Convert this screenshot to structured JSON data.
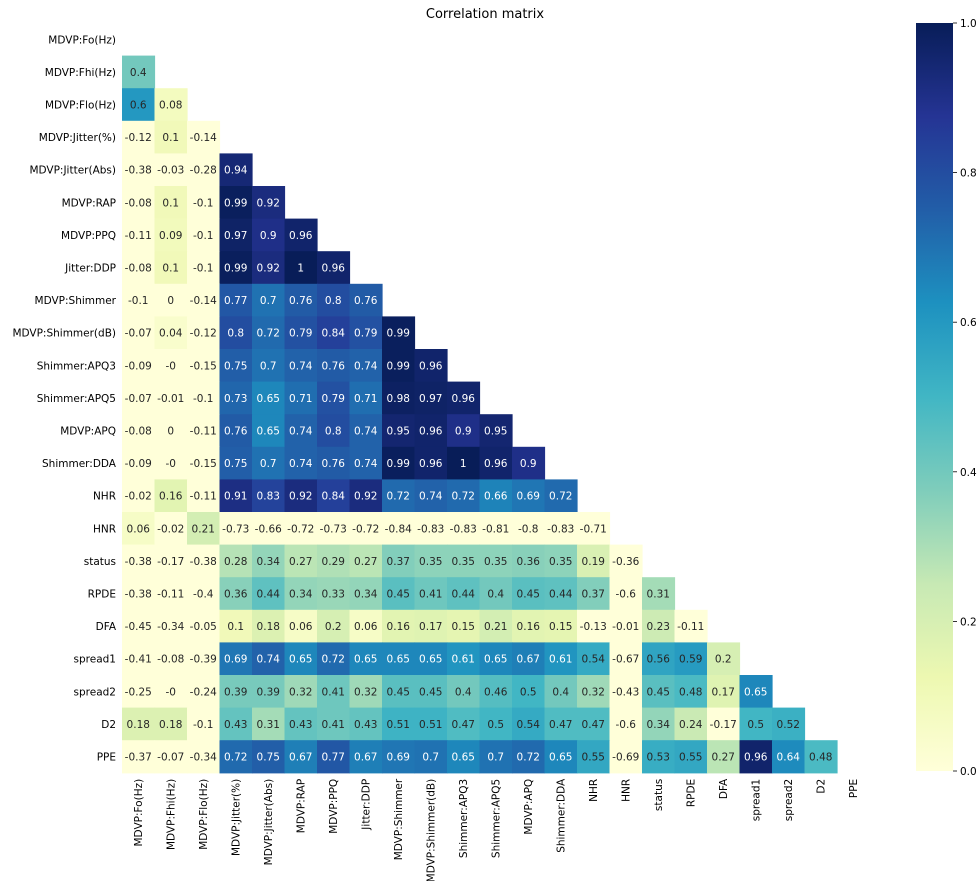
{
  "chart_data": {
    "type": "heatmap",
    "title": "Correlation matrix",
    "variables": [
      "MDVP:Fo(Hz)",
      "MDVP:Fhi(Hz)",
      "MDVP:Flo(Hz)",
      "MDVP:Jitter(%)",
      "MDVP:Jitter(Abs)",
      "MDVP:RAP",
      "MDVP:PPQ",
      "Jitter:DDP",
      "MDVP:Shimmer",
      "MDVP:Shimmer(dB)",
      "Shimmer:APQ3",
      "Shimmer:APQ5",
      "MDVP:APQ",
      "Shimmer:DDA",
      "NHR",
      "HNR",
      "status",
      "RPDE",
      "DFA",
      "spread1",
      "spread2",
      "D2",
      "PPE"
    ],
    "mask": "upper-triangle-including-diagonal",
    "values": [
      [],
      [
        0.4
      ],
      [
        0.6,
        0.08
      ],
      [
        -0.12,
        0.1,
        -0.14
      ],
      [
        -0.38,
        -0.03,
        -0.28,
        0.94
      ],
      [
        -0.08,
        0.1,
        -0.1,
        0.99,
        0.92
      ],
      [
        -0.11,
        0.09,
        -0.1,
        0.97,
        0.9,
        0.96
      ],
      [
        -0.08,
        0.1,
        -0.1,
        0.99,
        0.92,
        1,
        0.96
      ],
      [
        -0.1,
        0,
        -0.14,
        0.77,
        0.7,
        0.76,
        0.8,
        0.76
      ],
      [
        -0.07,
        0.04,
        -0.12,
        0.8,
        0.72,
        0.79,
        0.84,
        0.79,
        0.99
      ],
      [
        -0.09,
        -0.0,
        -0.15,
        0.75,
        0.7,
        0.74,
        0.76,
        0.74,
        0.99,
        0.96
      ],
      [
        -0.07,
        -0.01,
        -0.1,
        0.73,
        0.65,
        0.71,
        0.79,
        0.71,
        0.98,
        0.97,
        0.96
      ],
      [
        -0.08,
        0,
        -0.11,
        0.76,
        0.65,
        0.74,
        0.8,
        0.74,
        0.95,
        0.96,
        0.9,
        0.95
      ],
      [
        -0.09,
        -0.0,
        -0.15,
        0.75,
        0.7,
        0.74,
        0.76,
        0.74,
        0.99,
        0.96,
        1,
        0.96,
        0.9
      ],
      [
        -0.02,
        0.16,
        -0.11,
        0.91,
        0.83,
        0.92,
        0.84,
        0.92,
        0.72,
        0.74,
        0.72,
        0.66,
        0.69,
        0.72
      ],
      [
        0.06,
        -0.02,
        0.21,
        -0.73,
        -0.66,
        -0.72,
        -0.73,
        -0.72,
        -0.84,
        -0.83,
        -0.83,
        -0.81,
        -0.8,
        -0.83,
        -0.71
      ],
      [
        -0.38,
        -0.17,
        -0.38,
        0.28,
        0.34,
        0.27,
        0.29,
        0.27,
        0.37,
        0.35,
        0.35,
        0.35,
        0.36,
        0.35,
        0.19,
        -0.36
      ],
      [
        -0.38,
        -0.11,
        -0.4,
        0.36,
        0.44,
        0.34,
        0.33,
        0.34,
        0.45,
        0.41,
        0.44,
        0.4,
        0.45,
        0.44,
        0.37,
        -0.6,
        0.31
      ],
      [
        -0.45,
        -0.34,
        -0.05,
        0.1,
        0.18,
        0.06,
        0.2,
        0.06,
        0.16,
        0.17,
        0.15,
        0.21,
        0.16,
        0.15,
        -0.13,
        -0.01,
        0.23,
        -0.11
      ],
      [
        -0.41,
        -0.08,
        -0.39,
        0.69,
        0.74,
        0.65,
        0.72,
        0.65,
        0.65,
        0.65,
        0.61,
        0.65,
        0.67,
        0.61,
        0.54,
        -0.67,
        0.56,
        0.59,
        0.2
      ],
      [
        -0.25,
        -0.0,
        -0.24,
        0.39,
        0.39,
        0.32,
        0.41,
        0.32,
        0.45,
        0.45,
        0.4,
        0.46,
        0.5,
        0.4,
        0.32,
        -0.43,
        0.45,
        0.48,
        0.17,
        0.65
      ],
      [
        0.18,
        0.18,
        -0.1,
        0.43,
        0.31,
        0.43,
        0.41,
        0.43,
        0.51,
        0.51,
        0.47,
        0.5,
        0.54,
        0.47,
        0.47,
        -0.6,
        0.34,
        0.24,
        -0.17,
        0.5,
        0.52
      ],
      [
        -0.37,
        -0.07,
        -0.34,
        0.72,
        0.75,
        0.67,
        0.77,
        0.67,
        0.69,
        0.7,
        0.65,
        0.7,
        0.72,
        0.65,
        0.55,
        -0.69,
        0.53,
        0.55,
        0.27,
        0.96,
        0.64,
        0.48
      ]
    ],
    "display": {
      "10_1": "-0",
      "13_1": "-0",
      "20_1": "-0"
    },
    "colorbar": {
      "colormap": "YlGnBu",
      "range": [
        0.0,
        1.0
      ],
      "ticks": [
        "0.0",
        "0.2",
        "0.4",
        "0.6",
        "0.8",
        "1.0"
      ]
    }
  }
}
